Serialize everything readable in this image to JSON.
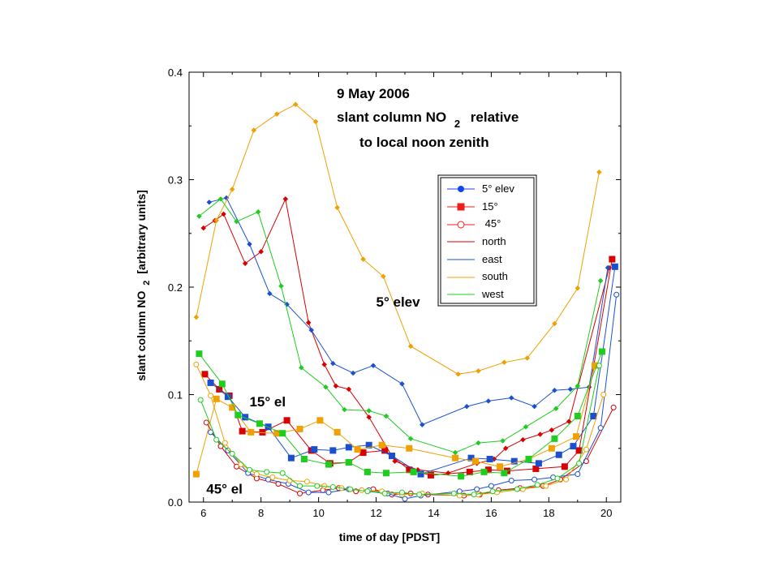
{
  "chart_data": {
    "type": "line",
    "title_lines": [
      "9 May 2006",
      "slant column NO",
      "2",
      "relative",
      "to local noon zenith"
    ],
    "xlabel": "time of day [PDST]",
    "ylabel_parts": [
      "slant column NO",
      "2",
      "[arbitrary units]"
    ],
    "xlim": [
      5.5,
      20.5
    ],
    "ylim": [
      0.0,
      0.4
    ],
    "xticks": [
      6,
      8,
      10,
      12,
      14,
      16,
      18,
      20
    ],
    "yticks": [
      0.0,
      0.1,
      0.2,
      0.3,
      0.4
    ],
    "ytick_labels": [
      "0.0",
      "0.1",
      "0.2",
      "0.3",
      "0.4"
    ],
    "grid": false,
    "legend_position": "upper right, inside plot",
    "legend": [
      {
        "label": "5° elev",
        "kind": "marker",
        "marker": "filled-circle",
        "color": "#1446e6"
      },
      {
        "label": "15°",
        "kind": "marker",
        "marker": "filled-square",
        "color": "#ee1c1c"
      },
      {
        "label": " 45°",
        "kind": "marker",
        "marker": "open-circle",
        "color": "#ee1c1c"
      },
      {
        "label": "north",
        "kind": "line",
        "color": "#d80000"
      },
      {
        "label": "east",
        "kind": "line",
        "color": "#1a50d0"
      },
      {
        "label": "south",
        "kind": "line",
        "color": "#f0a000"
      },
      {
        "label": "west",
        "kind": "line",
        "color": "#20cc20"
      }
    ],
    "annotations": [
      {
        "text": "5° elev",
        "x": 12.0,
        "y": 0.182
      },
      {
        "text": "15° el",
        "x": 7.6,
        "y": 0.089
      },
      {
        "text": "45° el",
        "x": 6.1,
        "y": 0.008
      }
    ],
    "series": [
      {
        "direction": "north",
        "elevation": "5°",
        "color": "#d80000",
        "marker": "small-diamond",
        "x": [
          6.0,
          6.4,
          6.7,
          7.45,
          8.0,
          8.85,
          9.65,
          10.2,
          10.6,
          11.05,
          11.75,
          12.65,
          13.45,
          14.5,
          15.5,
          16.1,
          16.5,
          17.1,
          17.7,
          18.1,
          18.7,
          20.1
        ],
        "y": [
          0.255,
          0.262,
          0.268,
          0.222,
          0.233,
          0.282,
          0.167,
          0.128,
          0.108,
          0.105,
          0.079,
          0.038,
          0.03,
          0.027,
          0.036,
          0.04,
          0.05,
          0.058,
          0.063,
          0.067,
          0.075,
          0.218
        ]
      },
      {
        "direction": "east",
        "elevation": "5°",
        "color": "#1a50d0",
        "marker": "small-diamond",
        "x": [
          6.2,
          6.8,
          7.6,
          8.3,
          8.9,
          9.75,
          10.5,
          11.2,
          11.9,
          12.9,
          13.6,
          15.15,
          15.9,
          16.7,
          17.5,
          18.2,
          18.75,
          19.4,
          20.05
        ],
        "y": [
          0.279,
          0.283,
          0.24,
          0.194,
          0.184,
          0.16,
          0.129,
          0.12,
          0.127,
          0.11,
          0.072,
          0.089,
          0.094,
          0.097,
          0.089,
          0.104,
          0.105,
          0.107,
          0.218
        ]
      },
      {
        "direction": "south",
        "elevation": "5°",
        "color": "#f0a000",
        "marker": "small-diamond",
        "x": [
          5.75,
          6.45,
          7.0,
          7.75,
          8.55,
          9.2,
          9.9,
          10.65,
          11.55,
          12.25,
          13.2,
          14.85,
          15.55,
          16.45,
          17.25,
          18.2,
          19.0,
          19.75
        ],
        "y": [
          0.172,
          0.262,
          0.291,
          0.346,
          0.361,
          0.37,
          0.354,
          0.274,
          0.226,
          0.21,
          0.145,
          0.119,
          0.122,
          0.13,
          0.134,
          0.166,
          0.199,
          0.307
        ]
      },
      {
        "direction": "west",
        "elevation": "5°",
        "color": "#20cc20",
        "marker": "small-diamond",
        "x": [
          5.85,
          6.6,
          7.15,
          7.9,
          8.7,
          9.4,
          10.25,
          10.9,
          11.75,
          12.35,
          13.2,
          14.75,
          15.55,
          16.4,
          17.2,
          18.25,
          19.0,
          19.8
        ],
        "y": [
          0.266,
          0.282,
          0.261,
          0.27,
          0.201,
          0.125,
          0.107,
          0.086,
          0.085,
          0.08,
          0.059,
          0.046,
          0.055,
          0.057,
          0.07,
          0.087,
          0.108,
          0.206
        ]
      },
      {
        "direction": "north",
        "elevation": "15°",
        "color": "#d80000",
        "marker": "square",
        "x": [
          6.05,
          6.55,
          6.9,
          7.35,
          8.05,
          8.9,
          9.75,
          10.4,
          11.05,
          11.55,
          12.3,
          13.15,
          13.9,
          15.25,
          15.9,
          16.55,
          17.55,
          18.55,
          19.05,
          20.2
        ],
        "y": [
          0.119,
          0.105,
          0.099,
          0.066,
          0.065,
          0.076,
          0.048,
          0.036,
          0.037,
          0.046,
          0.048,
          0.03,
          0.025,
          0.028,
          0.03,
          0.029,
          0.031,
          0.033,
          0.048,
          0.226
        ]
      },
      {
        "direction": "east",
        "elevation": "15°",
        "color": "#1a50d0",
        "marker": "square",
        "x": [
          6.25,
          6.85,
          7.45,
          8.25,
          9.05,
          9.85,
          10.5,
          11.05,
          11.75,
          12.55,
          13.55,
          15.3,
          15.95,
          16.8,
          17.65,
          18.35,
          18.85,
          19.55,
          20.3
        ],
        "y": [
          0.111,
          0.098,
          0.079,
          0.07,
          0.041,
          0.049,
          0.048,
          0.051,
          0.053,
          0.043,
          0.026,
          0.041,
          0.04,
          0.038,
          0.036,
          0.044,
          0.052,
          0.08,
          0.219
        ]
      },
      {
        "direction": "south",
        "elevation": "15°",
        "color": "#f0a000",
        "marker": "square",
        "x": [
          5.75,
          6.45,
          7.0,
          7.65,
          8.55,
          9.35,
          10.05,
          10.65,
          11.35,
          12.2,
          13.15,
          14.75,
          15.45,
          16.3,
          17.3,
          18.1,
          18.95,
          19.6
        ],
        "y": [
          0.026,
          0.096,
          0.088,
          0.065,
          0.064,
          0.068,
          0.076,
          0.065,
          0.049,
          0.053,
          0.05,
          0.041,
          0.038,
          0.033,
          0.04,
          0.05,
          0.061,
          0.127
        ]
      },
      {
        "direction": "west",
        "elevation": "15°",
        "color": "#20cc20",
        "marker": "square",
        "x": [
          5.85,
          6.65,
          7.2,
          7.95,
          8.75,
          9.5,
          10.35,
          11.05,
          11.7,
          12.35,
          13.3,
          14.95,
          15.75,
          16.45,
          17.3,
          18.2,
          19.0,
          19.85
        ],
        "y": [
          0.138,
          0.11,
          0.081,
          0.073,
          0.064,
          0.04,
          0.035,
          0.037,
          0.028,
          0.027,
          0.028,
          0.024,
          0.028,
          0.027,
          0.04,
          0.059,
          0.08,
          0.14
        ]
      },
      {
        "direction": "north",
        "elevation": "45°",
        "color": "#d80000",
        "marker": "open-circle",
        "x": [
          6.1,
          6.6,
          7.15,
          7.85,
          8.6,
          9.35,
          10.15,
          10.7,
          11.3,
          11.9,
          12.55,
          13.2,
          13.8,
          15.05,
          15.6,
          16.25,
          17.0,
          17.8,
          18.4,
          19.3,
          20.25
        ],
        "y": [
          0.074,
          0.052,
          0.033,
          0.022,
          0.017,
          0.008,
          0.011,
          0.013,
          0.01,
          0.012,
          0.007,
          0.008,
          0.007,
          0.006,
          0.007,
          0.011,
          0.013,
          0.015,
          0.021,
          0.038,
          0.088
        ]
      },
      {
        "direction": "east",
        "elevation": "45°",
        "color": "#1a50d0",
        "marker": "open-circle",
        "x": [
          6.25,
          6.85,
          7.55,
          8.25,
          8.95,
          9.65,
          10.35,
          11.05,
          11.75,
          12.4,
          13.0,
          13.55,
          14.9,
          15.5,
          16.0,
          16.7,
          17.5,
          18.15,
          19.0,
          19.8,
          20.35
        ],
        "y": [
          0.065,
          0.048,
          0.027,
          0.021,
          0.017,
          0.009,
          0.009,
          0.012,
          0.011,
          0.008,
          0.003,
          0.006,
          0.01,
          0.012,
          0.015,
          0.02,
          0.021,
          0.023,
          0.026,
          0.069,
          0.193
        ]
      },
      {
        "direction": "south",
        "elevation": "45°",
        "color": "#f0a000",
        "marker": "open-circle",
        "x": [
          5.75,
          6.25,
          6.75,
          7.3,
          7.85,
          8.4,
          9.0,
          9.6,
          10.2,
          10.8,
          11.5,
          12.2,
          12.9,
          13.6,
          14.9,
          15.55,
          16.2,
          17.1,
          17.9,
          18.6,
          19.3,
          19.9
        ],
        "y": [
          0.128,
          0.099,
          0.055,
          0.035,
          0.026,
          0.023,
          0.02,
          0.019,
          0.015,
          0.013,
          0.011,
          0.01,
          0.007,
          0.008,
          0.006,
          0.007,
          0.009,
          0.012,
          0.015,
          0.021,
          0.049,
          0.1
        ]
      },
      {
        "direction": "west",
        "elevation": "45°",
        "color": "#20cc20",
        "marker": "open-circle",
        "x": [
          5.9,
          6.45,
          7.0,
          7.6,
          8.2,
          8.75,
          9.35,
          9.95,
          10.5,
          11.1,
          11.7,
          12.3,
          12.9,
          13.5,
          14.7,
          15.4,
          16.05,
          16.9,
          17.6,
          18.3,
          19.05,
          19.75
        ],
        "y": [
          0.095,
          0.058,
          0.045,
          0.03,
          0.028,
          0.027,
          0.015,
          0.015,
          0.014,
          0.012,
          0.01,
          0.008,
          0.009,
          0.007,
          0.008,
          0.007,
          0.01,
          0.012,
          0.016,
          0.022,
          0.036,
          0.127
        ]
      }
    ]
  }
}
